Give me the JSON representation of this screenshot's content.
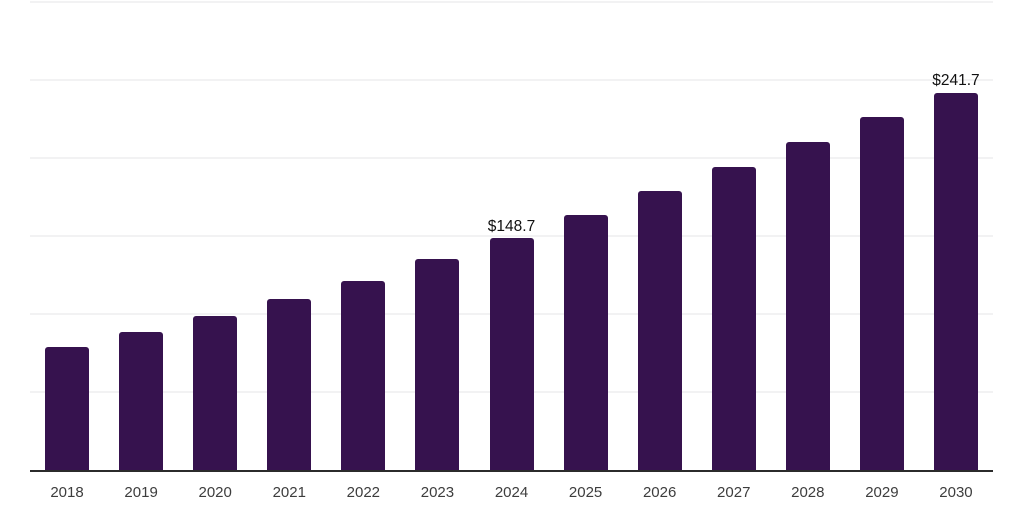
{
  "colors": {
    "bar": "#36124e",
    "grid": "#f2f2f3",
    "axis": "#2b2b2b",
    "tick_label": "#3d3d3d",
    "data_label": "#111111",
    "background": "#ffffff"
  },
  "chart_data": {
    "type": "bar",
    "title": "",
    "xlabel": "",
    "ylabel": "",
    "categories": [
      "2018",
      "2019",
      "2020",
      "2021",
      "2022",
      "2023",
      "2024",
      "2025",
      "2026",
      "2027",
      "2028",
      "2029",
      "2030"
    ],
    "values": [
      78.7,
      88.4,
      98.7,
      109.6,
      121.1,
      135.2,
      148.7,
      163.5,
      178.9,
      194.2,
      210.2,
      226.3,
      241.7
    ],
    "data_labels": [
      null,
      null,
      null,
      null,
      null,
      null,
      "$148.7",
      null,
      null,
      null,
      null,
      null,
      "$241.7"
    ],
    "ylim": [
      0,
      300
    ],
    "grid_interval": 50,
    "grid": true,
    "y_tick_labels_visible": false,
    "legend": false
  }
}
